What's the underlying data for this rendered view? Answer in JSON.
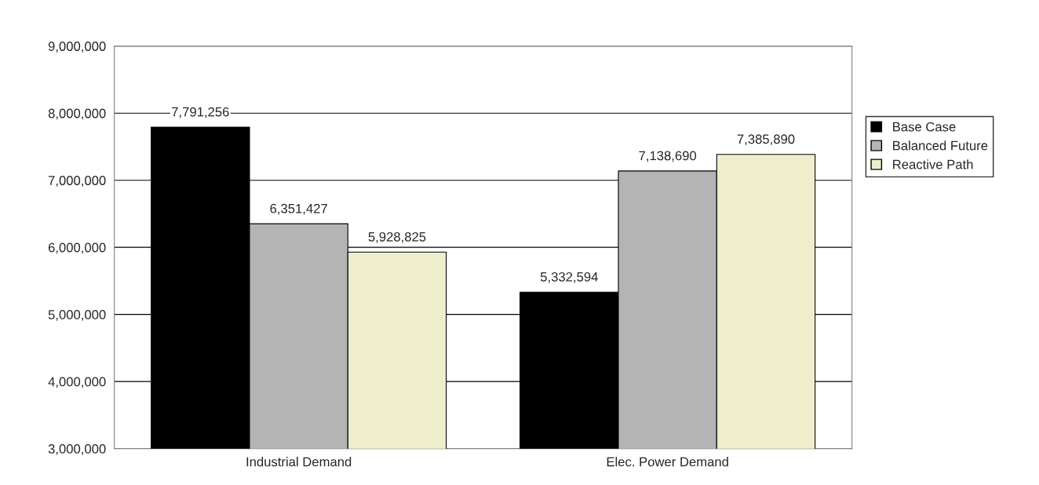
{
  "chart_data": {
    "type": "bar",
    "categories": [
      "Industrial Demand",
      "Elec. Power Demand"
    ],
    "series": [
      {
        "name": "Base Case",
        "color": "#000000",
        "values": [
          7791256,
          5332594
        ],
        "value_labels": [
          "7,791,256",
          "5,332,594"
        ]
      },
      {
        "name": "Balanced Future",
        "color": "#b4b4b4",
        "values": [
          6351427,
          7138690
        ],
        "value_labels": [
          "6,351,427",
          "7,138,690"
        ]
      },
      {
        "name": "Reactive Path",
        "color": "#eeeecc",
        "values": [
          5928825,
          7385890
        ],
        "value_labels": [
          "5,928,825",
          "7,385,890"
        ]
      }
    ],
    "ylim": [
      3000000,
      9000000
    ],
    "yticks": [
      {
        "value": 3000000,
        "label": "3,000,000"
      },
      {
        "value": 4000000,
        "label": "4,000,000"
      },
      {
        "value": 5000000,
        "label": "5,000,000"
      },
      {
        "value": 6000000,
        "label": "6,000,000"
      },
      {
        "value": 7000000,
        "label": "7,000,000"
      },
      {
        "value": 8000000,
        "label": "8,000,000"
      },
      {
        "value": 9000000,
        "label": "9,000,000"
      }
    ],
    "grid": "y",
    "legend": "right"
  }
}
